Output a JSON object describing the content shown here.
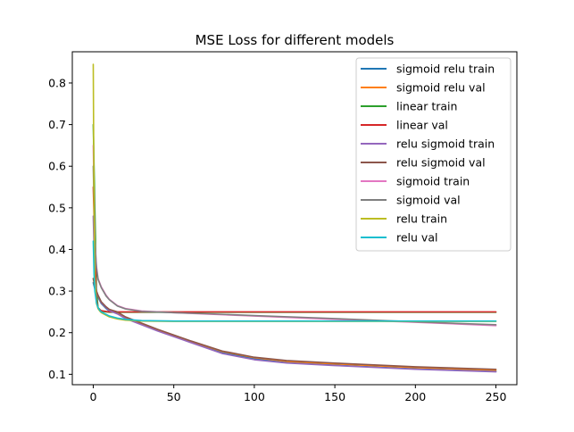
{
  "chart_data": {
    "type": "line",
    "title": "MSE Loss for different models",
    "xlabel": "",
    "ylabel": "",
    "xlim": [
      -13,
      263
    ],
    "ylim": [
      0.075,
      0.875
    ],
    "xticks": [
      0,
      50,
      100,
      150,
      200,
      250
    ],
    "yticks": [
      0.1,
      0.2,
      0.3,
      0.4,
      0.5,
      0.6,
      0.7,
      0.8
    ],
    "grid": false,
    "legend_position": "top-right",
    "series": [
      {
        "name": "sigmoid relu train",
        "color": "#1f77b4",
        "x": [
          0,
          1,
          2,
          3,
          5,
          8,
          10,
          15,
          20,
          30,
          40,
          60,
          80,
          100,
          120,
          150,
          200,
          250
        ],
        "y": [
          0.32,
          0.305,
          0.295,
          0.285,
          0.27,
          0.258,
          0.252,
          0.246,
          0.235,
          0.22,
          0.205,
          0.178,
          0.152,
          0.137,
          0.128,
          0.122,
          0.113,
          0.107
        ]
      },
      {
        "name": "sigmoid relu val",
        "color": "#ff7f0e",
        "x": [
          0,
          1,
          2,
          3,
          5,
          8,
          10,
          15,
          20,
          30,
          40,
          60,
          80,
          100,
          120,
          150,
          200,
          250
        ],
        "y": [
          0.33,
          0.31,
          0.298,
          0.288,
          0.272,
          0.26,
          0.254,
          0.248,
          0.237,
          0.222,
          0.207,
          0.18,
          0.155,
          0.14,
          0.131,
          0.125,
          0.116,
          0.11
        ]
      },
      {
        "name": "linear train",
        "color": "#2ca02c",
        "x": [
          0,
          1,
          2,
          3,
          5,
          8,
          10,
          15,
          20,
          30,
          50,
          100,
          150,
          200,
          250
        ],
        "y": [
          0.7,
          0.5,
          0.3,
          0.26,
          0.252,
          0.25,
          0.249,
          0.249,
          0.249,
          0.249,
          0.249,
          0.249,
          0.249,
          0.249,
          0.249
        ]
      },
      {
        "name": "linear val",
        "color": "#d62728",
        "x": [
          0,
          1,
          2,
          3,
          5,
          8,
          10,
          15,
          20,
          30,
          50,
          100,
          150,
          200,
          250
        ],
        "y": [
          0.55,
          0.4,
          0.28,
          0.258,
          0.253,
          0.251,
          0.25,
          0.25,
          0.25,
          0.25,
          0.25,
          0.25,
          0.25,
          0.25,
          0.25
        ]
      },
      {
        "name": "relu sigmoid train",
        "color": "#9467bd",
        "x": [
          0,
          1,
          2,
          3,
          5,
          8,
          10,
          15,
          20,
          30,
          40,
          60,
          80,
          100,
          120,
          150,
          200,
          250
        ],
        "y": [
          0.48,
          0.33,
          0.3,
          0.288,
          0.272,
          0.26,
          0.253,
          0.245,
          0.234,
          0.219,
          0.204,
          0.177,
          0.15,
          0.135,
          0.127,
          0.121,
          0.112,
          0.106
        ]
      },
      {
        "name": "relu sigmoid val",
        "color": "#8c564b",
        "x": [
          0,
          1,
          2,
          3,
          5,
          8,
          10,
          15,
          20,
          30,
          40,
          60,
          80,
          100,
          120,
          150,
          200,
          250
        ],
        "y": [
          0.33,
          0.312,
          0.3,
          0.29,
          0.274,
          0.262,
          0.256,
          0.25,
          0.238,
          0.223,
          0.208,
          0.181,
          0.156,
          0.141,
          0.133,
          0.127,
          0.118,
          0.112
        ]
      },
      {
        "name": "sigmoid train",
        "color": "#e377c2",
        "x": [
          0,
          1,
          2,
          3,
          5,
          8,
          10,
          15,
          20,
          30,
          50,
          75,
          100,
          150,
          200,
          250
        ],
        "y": [
          0.65,
          0.42,
          0.36,
          0.33,
          0.31,
          0.29,
          0.28,
          0.265,
          0.258,
          0.252,
          0.248,
          0.244,
          0.24,
          0.232,
          0.225,
          0.217
        ]
      },
      {
        "name": "sigmoid val",
        "color": "#7f7f7f",
        "x": [
          0,
          1,
          2,
          3,
          5,
          8,
          10,
          15,
          20,
          30,
          50,
          75,
          100,
          150,
          200,
          250
        ],
        "y": [
          0.6,
          0.41,
          0.355,
          0.328,
          0.308,
          0.288,
          0.279,
          0.264,
          0.257,
          0.251,
          0.248,
          0.245,
          0.241,
          0.234,
          0.226,
          0.219
        ]
      },
      {
        "name": "relu train",
        "color": "#bcbd22",
        "x": [
          0,
          0.5,
          1,
          2,
          3,
          4,
          5,
          8,
          10,
          15,
          20,
          30,
          50,
          100,
          150,
          200,
          250
        ],
        "y": [
          0.845,
          0.5,
          0.33,
          0.27,
          0.258,
          0.252,
          0.248,
          0.242,
          0.238,
          0.233,
          0.23,
          0.228,
          0.227,
          0.227,
          0.227,
          0.227,
          0.227
        ]
      },
      {
        "name": "relu val",
        "color": "#17becf",
        "x": [
          0,
          0.5,
          1,
          2,
          3,
          4,
          5,
          8,
          10,
          15,
          20,
          30,
          50,
          100,
          150,
          200,
          250
        ],
        "y": [
          0.42,
          0.34,
          0.3,
          0.272,
          0.26,
          0.254,
          0.25,
          0.244,
          0.24,
          0.235,
          0.232,
          0.229,
          0.228,
          0.228,
          0.228,
          0.228,
          0.228
        ]
      }
    ]
  }
}
